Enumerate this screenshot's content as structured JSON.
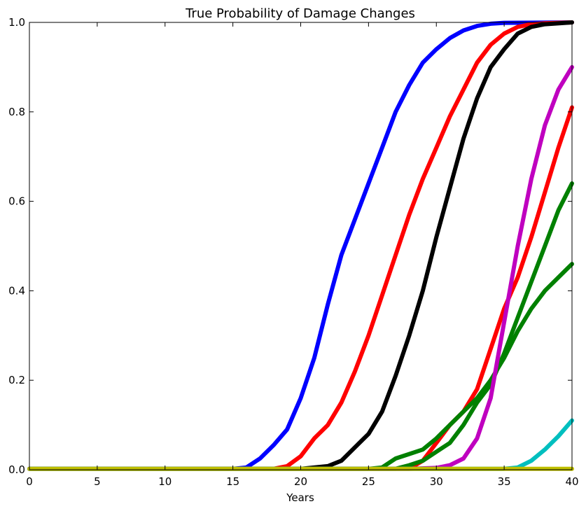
{
  "chart_data": {
    "type": "line",
    "title": "True Probability of Damage Changes",
    "xlabel": "Years",
    "ylabel": "",
    "xlim": [
      0,
      40
    ],
    "ylim": [
      0,
      1
    ],
    "x_ticks": [
      0,
      5,
      10,
      15,
      20,
      25,
      30,
      35,
      40
    ],
    "y_ticks": [
      0.0,
      0.2,
      0.4,
      0.6,
      0.8,
      1.0
    ],
    "y_tick_labels": [
      "0.0",
      "0.2",
      "0.4",
      "0.6",
      "0.8",
      "1.0"
    ],
    "grid": false,
    "series": [
      {
        "color": "#0000ff",
        "points": [
          [
            0,
            0.002
          ],
          [
            15,
            0.002
          ],
          [
            16,
            0.005
          ],
          [
            17,
            0.025
          ],
          [
            18,
            0.055
          ],
          [
            19,
            0.09
          ],
          [
            20,
            0.16
          ],
          [
            21,
            0.25
          ],
          [
            22,
            0.37
          ],
          [
            23,
            0.48
          ],
          [
            24,
            0.56
          ],
          [
            25,
            0.64
          ],
          [
            26,
            0.72
          ],
          [
            27,
            0.8
          ],
          [
            28,
            0.86
          ],
          [
            29,
            0.91
          ],
          [
            30,
            0.94
          ],
          [
            31,
            0.965
          ],
          [
            32,
            0.982
          ],
          [
            33,
            0.992
          ],
          [
            34,
            0.997
          ],
          [
            35,
            0.999
          ],
          [
            40,
            1.0
          ]
        ]
      },
      {
        "color": "#ff0000",
        "points": [
          [
            0,
            0.002
          ],
          [
            18,
            0.002
          ],
          [
            19,
            0.008
          ],
          [
            20,
            0.03
          ],
          [
            21,
            0.07
          ],
          [
            22,
            0.1
          ],
          [
            23,
            0.15
          ],
          [
            24,
            0.22
          ],
          [
            25,
            0.3
          ],
          [
            26,
            0.39
          ],
          [
            27,
            0.48
          ],
          [
            28,
            0.57
          ],
          [
            29,
            0.65
          ],
          [
            30,
            0.72
          ],
          [
            31,
            0.79
          ],
          [
            32,
            0.85
          ],
          [
            33,
            0.91
          ],
          [
            34,
            0.95
          ],
          [
            35,
            0.975
          ],
          [
            36,
            0.99
          ],
          [
            37,
            0.996
          ],
          [
            38,
            0.998
          ],
          [
            40,
            1.0
          ]
        ]
      },
      {
        "color": "#000000",
        "points": [
          [
            0,
            0.002
          ],
          [
            20,
            0.002
          ],
          [
            22,
            0.008
          ],
          [
            23,
            0.02
          ],
          [
            24,
            0.05
          ],
          [
            25,
            0.08
          ],
          [
            26,
            0.13
          ],
          [
            27,
            0.21
          ],
          [
            28,
            0.3
          ],
          [
            29,
            0.4
          ],
          [
            30,
            0.52
          ],
          [
            31,
            0.63
          ],
          [
            32,
            0.74
          ],
          [
            33,
            0.83
          ],
          [
            34,
            0.9
          ],
          [
            35,
            0.94
          ],
          [
            36,
            0.975
          ],
          [
            37,
            0.99
          ],
          [
            38,
            0.996
          ],
          [
            40,
            1.0
          ]
        ]
      },
      {
        "color": "#ff0000",
        "points": [
          [
            0,
            0.002
          ],
          [
            28,
            0.002
          ],
          [
            29,
            0.02
          ],
          [
            30,
            0.06
          ],
          [
            31,
            0.1
          ],
          [
            32,
            0.13
          ],
          [
            33,
            0.18
          ],
          [
            34,
            0.27
          ],
          [
            35,
            0.36
          ],
          [
            36,
            0.43
          ],
          [
            37,
            0.52
          ],
          [
            38,
            0.62
          ],
          [
            39,
            0.72
          ],
          [
            40,
            0.81
          ]
        ]
      },
      {
        "color": "#008000",
        "points": [
          [
            0,
            0.002
          ],
          [
            25,
            0.002
          ],
          [
            26,
            0.005
          ],
          [
            27,
            0.025
          ],
          [
            28,
            0.035
          ],
          [
            29,
            0.045
          ],
          [
            30,
            0.07
          ],
          [
            31,
            0.1
          ],
          [
            32,
            0.13
          ],
          [
            33,
            0.16
          ],
          [
            34,
            0.2
          ],
          [
            35,
            0.25
          ],
          [
            36,
            0.31
          ],
          [
            37,
            0.36
          ],
          [
            38,
            0.4
          ],
          [
            39,
            0.43
          ],
          [
            40,
            0.46
          ]
        ]
      },
      {
        "color": "#008000",
        "points": [
          [
            0,
            0.002
          ],
          [
            27,
            0.002
          ],
          [
            28,
            0.01
          ],
          [
            29,
            0.02
          ],
          [
            30,
            0.04
          ],
          [
            31,
            0.06
          ],
          [
            32,
            0.1
          ],
          [
            33,
            0.15
          ],
          [
            34,
            0.19
          ],
          [
            35,
            0.26
          ],
          [
            36,
            0.34
          ],
          [
            37,
            0.42
          ],
          [
            38,
            0.5
          ],
          [
            39,
            0.58
          ],
          [
            40,
            0.64
          ]
        ]
      },
      {
        "color": "#bf00bf",
        "points": [
          [
            0,
            0.002
          ],
          [
            28,
            0.002
          ],
          [
            30,
            0.004
          ],
          [
            31,
            0.01
          ],
          [
            32,
            0.025
          ],
          [
            33,
            0.07
          ],
          [
            34,
            0.16
          ],
          [
            35,
            0.33
          ],
          [
            36,
            0.5
          ],
          [
            37,
            0.65
          ],
          [
            38,
            0.77
          ],
          [
            39,
            0.85
          ],
          [
            40,
            0.9
          ]
        ]
      },
      {
        "color": "#00bfbf",
        "points": [
          [
            0,
            0.002
          ],
          [
            35,
            0.002
          ],
          [
            36,
            0.005
          ],
          [
            37,
            0.02
          ],
          [
            38,
            0.045
          ],
          [
            39,
            0.075
          ],
          [
            40,
            0.11
          ]
        ]
      },
      {
        "color": "#bfbf00",
        "points": [
          [
            0,
            0.002
          ],
          [
            40,
            0.002
          ]
        ]
      }
    ]
  }
}
